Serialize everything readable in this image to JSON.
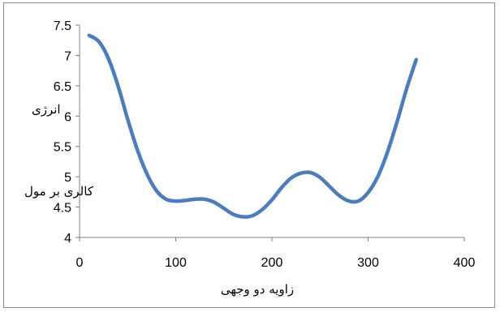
{
  "chart_data": {
    "type": "line",
    "title": "",
    "xlabel": "زاویه دو وجهی",
    "ylabel_line1": "انرژی",
    "ylabel_line2": "کالری بر مول",
    "xlim": [
      0,
      400
    ],
    "ylim": [
      4,
      7.5
    ],
    "xticks": [
      0,
      100,
      200,
      300,
      400
    ],
    "yticks": [
      4,
      4.5,
      5,
      5.5,
      6,
      6.5,
      7,
      7.5
    ],
    "ytick_labels": [
      "4",
      "4.5",
      "5",
      "5.5",
      "6",
      "6.5",
      "7",
      "7.5"
    ],
    "grid": false,
    "legend": "none",
    "series": [
      {
        "color": "#4a7dbf",
        "x": [
          10,
          20,
          30,
          40,
          50,
          60,
          70,
          80,
          90,
          100,
          110,
          120,
          130,
          140,
          150,
          160,
          170,
          180,
          190,
          200,
          210,
          220,
          230,
          240,
          250,
          260,
          270,
          280,
          290,
          300,
          310,
          320,
          330,
          340,
          350
        ],
        "y": [
          7.33,
          7.23,
          6.95,
          6.5,
          5.95,
          5.45,
          5.05,
          4.77,
          4.63,
          4.6,
          4.61,
          4.63,
          4.63,
          4.58,
          4.48,
          4.38,
          4.34,
          4.36,
          4.46,
          4.62,
          4.82,
          4.98,
          5.06,
          5.07,
          4.99,
          4.84,
          4.69,
          4.6,
          4.6,
          4.74,
          5.0,
          5.4,
          5.9,
          6.45,
          6.93
        ]
      }
    ]
  }
}
